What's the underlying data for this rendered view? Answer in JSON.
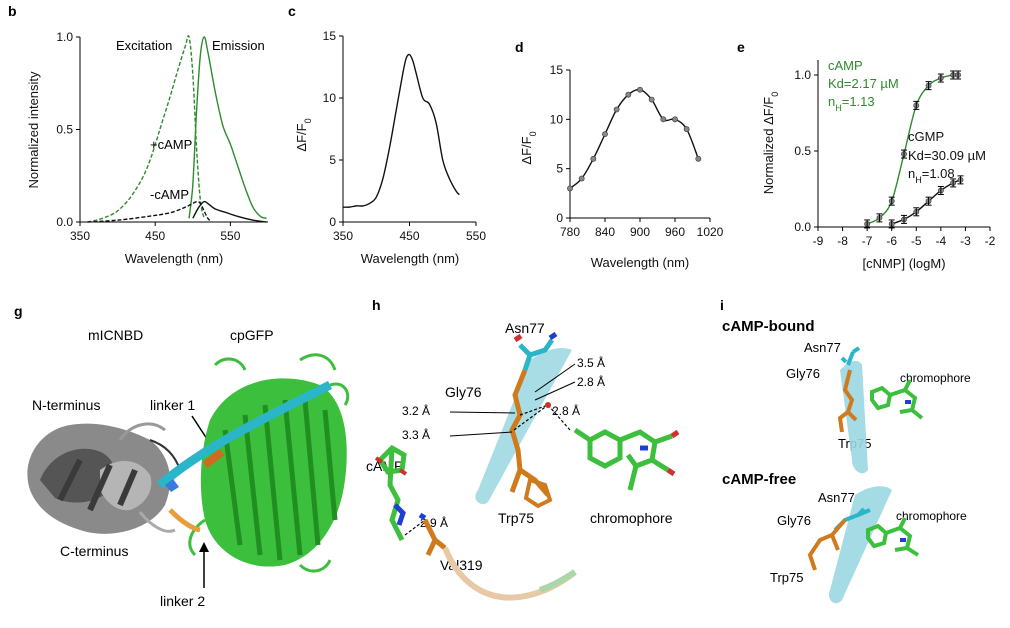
{
  "panels": {
    "b": "b",
    "c": "c",
    "d": "d",
    "e": "e",
    "g": "g",
    "h": "h",
    "i": "i"
  },
  "colors": {
    "green": "#2e8b2e",
    "black": "#111111",
    "gray": "#777777",
    "orange": "#d07a1e",
    "cyan": "#4ac6d8",
    "blue": "#1f3fd0",
    "red": "#d03030"
  },
  "chart_data": [
    {
      "id": "b",
      "type": "line",
      "xlabel": "Wavelength (nm)",
      "ylabel": "Normalized intensity",
      "xlim": [
        350,
        600
      ],
      "ylim": [
        0,
        1.0
      ],
      "xticks": [
        "350",
        "450",
        "550"
      ],
      "yticks": [
        "0.0",
        "0.5",
        "1.0"
      ],
      "annotations": [
        "Excitation",
        "Emission",
        "+cAMP",
        "-cAMP"
      ],
      "series": [
        {
          "name": "+cAMP Excitation",
          "style": "dashed",
          "color": "#2e8b2e",
          "x": [
            360,
            380,
            400,
            420,
            440,
            460,
            470,
            480,
            490,
            495,
            500,
            505,
            510,
            515
          ],
          "y": [
            0.0,
            0.02,
            0.06,
            0.15,
            0.3,
            0.55,
            0.68,
            0.82,
            0.95,
            1.0,
            0.8,
            0.4,
            0.12,
            0.02
          ]
        },
        {
          "name": "+cAMP Emission",
          "style": "solid",
          "color": "#2e8b2e",
          "x": [
            495,
            500,
            505,
            510,
            515,
            520,
            530,
            540,
            550,
            560,
            570,
            580,
            590,
            598
          ],
          "y": [
            0.02,
            0.2,
            0.6,
            0.9,
            1.0,
            0.92,
            0.7,
            0.52,
            0.42,
            0.3,
            0.18,
            0.08,
            0.03,
            0.02
          ]
        },
        {
          "name": "-cAMP Excitation",
          "style": "dashed",
          "color": "#111111",
          "x": [
            360,
            400,
            440,
            470,
            490,
            505,
            510,
            515,
            520,
            525
          ],
          "y": [
            0.0,
            0.01,
            0.03,
            0.05,
            0.08,
            0.11,
            0.1,
            0.06,
            0.02,
            0.0
          ]
        },
        {
          "name": "-cAMP Emission",
          "style": "solid",
          "color": "#111111",
          "x": [
            500,
            508,
            515,
            520,
            530,
            545,
            560,
            580,
            598
          ],
          "y": [
            0.02,
            0.08,
            0.11,
            0.1,
            0.07,
            0.05,
            0.03,
            0.01,
            0.0
          ]
        }
      ]
    },
    {
      "id": "c",
      "type": "line",
      "xlabel": "Wavelength (nm)",
      "ylabel": "ΔF/F",
      "ylabel_sub": "0",
      "xlim": [
        350,
        550
      ],
      "ylim": [
        0,
        15
      ],
      "xticks": [
        "350",
        "450",
        "550"
      ],
      "yticks": [
        "0",
        "5",
        "10",
        "15"
      ],
      "series": [
        {
          "name": "",
          "color": "#111111",
          "x": [
            350,
            360,
            370,
            380,
            390,
            400,
            410,
            420,
            430,
            440,
            445,
            450,
            455,
            460,
            470,
            480,
            490,
            500,
            510,
            520,
            525
          ],
          "y": [
            1.2,
            1.2,
            1.3,
            1.3,
            1.5,
            2.0,
            3.5,
            6.0,
            9.0,
            12.0,
            13.2,
            13.5,
            13.0,
            12.0,
            10.0,
            9.5,
            8.0,
            5.0,
            3.5,
            2.5,
            2.2
          ]
        }
      ]
    },
    {
      "id": "d",
      "type": "line",
      "xlabel": "Wavelength (nm)",
      "ylabel": "ΔF/F",
      "ylabel_sub": "0",
      "xlim": [
        780,
        1020
      ],
      "ylim": [
        0,
        15
      ],
      "xticks": [
        "780",
        "840",
        "900",
        "960",
        "1020"
      ],
      "yticks": [
        "0",
        "5",
        "10",
        "15"
      ],
      "series": [
        {
          "name": "",
          "color": "#111111",
          "x": [
            780,
            800,
            820,
            840,
            860,
            880,
            900,
            920,
            940,
            960,
            980,
            1000
          ],
          "y": [
            3.0,
            4.0,
            6.0,
            8.5,
            11.0,
            12.5,
            13.0,
            12.0,
            10.0,
            10.0,
            9.0,
            6.0
          ]
        }
      ]
    },
    {
      "id": "e",
      "type": "scatter",
      "xlabel": "[cNMP] (logM)",
      "ylabel": "Normalized ΔF/F",
      "ylabel_sub": "0",
      "xlim": [
        -9,
        -2
      ],
      "ylim": [
        0,
        1.0
      ],
      "xticks": [
        "-9",
        "-8",
        "-7",
        "-6",
        "-5",
        "-4",
        "-3",
        "-2"
      ],
      "yticks": [
        "0.0",
        "0.5",
        "1.0"
      ],
      "series": [
        {
          "name": "cAMP",
          "color": "#2e8b2e",
          "kd_label": "Kd=2.17 µM",
          "nh_prefix": "n",
          "nh_sub": "H",
          "nh_value": "=1.13",
          "x": [
            -7,
            -6.5,
            -6,
            -5.5,
            -5,
            -4.5,
            -4,
            -3.5,
            -3.3
          ],
          "y": [
            0.02,
            0.06,
            0.17,
            0.48,
            0.8,
            0.93,
            0.98,
            1.0,
            1.0
          ]
        },
        {
          "name": "cGMP",
          "color": "#111111",
          "kd_label": "Kd=30.09 µM",
          "nh_prefix": "n",
          "nh_sub": "H",
          "nh_value": "=1.08",
          "x": [
            -6,
            -5.5,
            -5,
            -4.5,
            -4,
            -3.5,
            -3.2
          ],
          "y": [
            0.02,
            0.05,
            0.1,
            0.17,
            0.24,
            0.29,
            0.31
          ]
        }
      ]
    }
  ],
  "panel_g": {
    "labels": [
      "mICNBD",
      "cpGFP",
      "N-terminus",
      "linker 1",
      "C-terminus",
      "linker 2"
    ]
  },
  "panel_h": {
    "labels": [
      "Asn77",
      "Gly76",
      "cAMP",
      "Trp75",
      "chromophore",
      "Val319"
    ],
    "distances": [
      "3.5 Å",
      "2.8 Å",
      "3.2 Å",
      "2.8 Å",
      "3.3 Å",
      "2.9 Å"
    ]
  },
  "panel_i": {
    "bound_title": "cAMP-bound",
    "free_title": "cAMP-free",
    "bound_labels": [
      "Asn77",
      "Gly76",
      "chromophore",
      "Trp75"
    ],
    "free_labels": [
      "Asn77",
      "Gly76",
      "chromophore",
      "Trp75"
    ]
  }
}
